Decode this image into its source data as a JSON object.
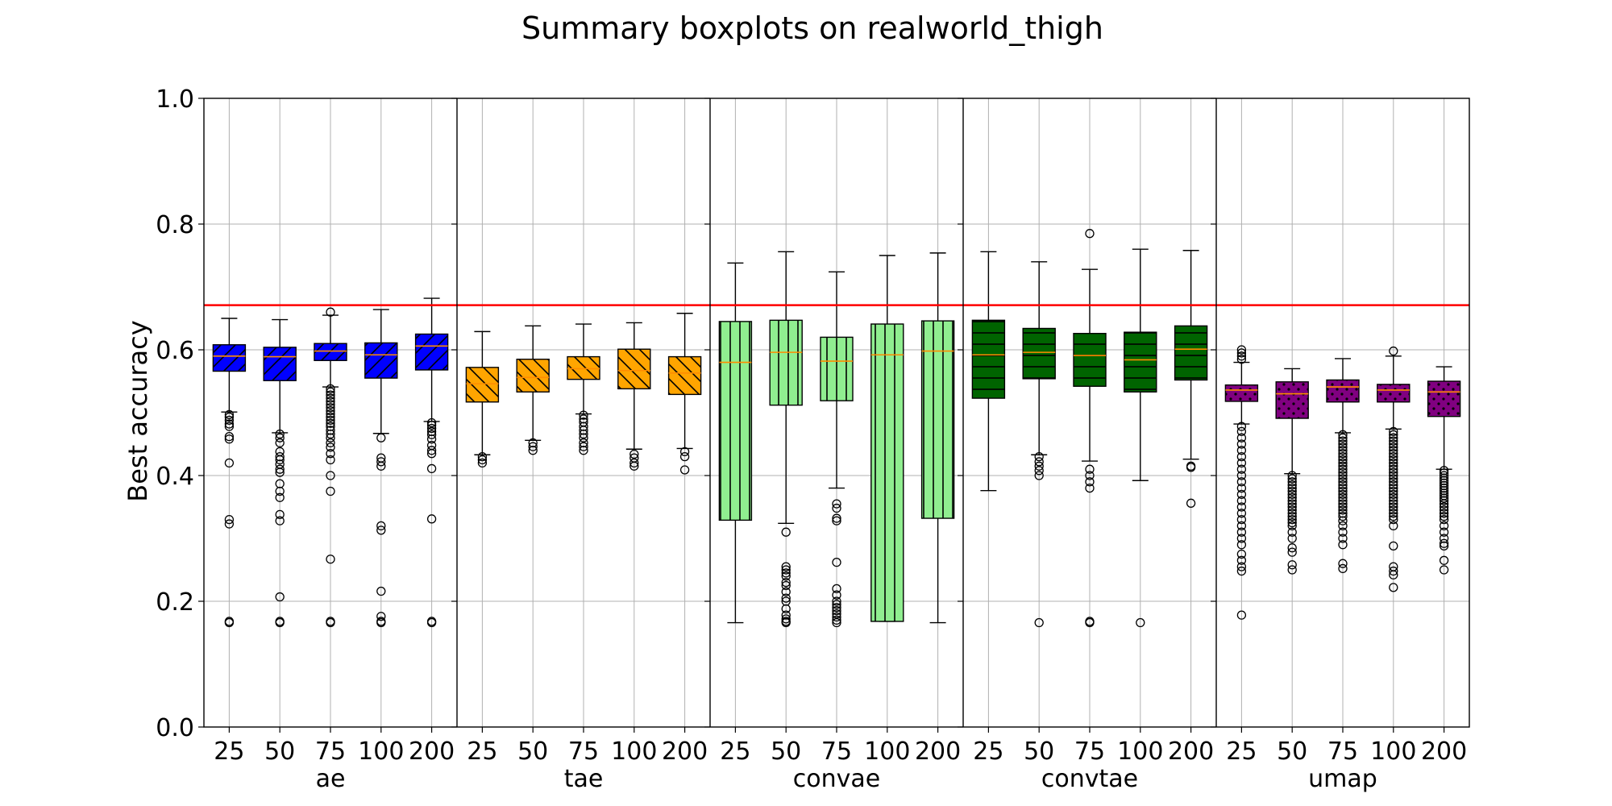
{
  "chart_data": {
    "type": "boxplot",
    "title": "Summary boxplots on realworld_thigh",
    "ylabel": "Best accuracy",
    "ylim": [
      0.0,
      1.0
    ],
    "yticks": [
      "0.0",
      "0.2",
      "0.4",
      "0.6",
      "0.8",
      "1.0"
    ],
    "grid": true,
    "reference_line": {
      "y": 0.671,
      "color": "#ff0000"
    },
    "groups": [
      {
        "name": "ae",
        "color": "#0000ff",
        "hatch": "diagonal-forward",
        "boxes": [
          {
            "label": "25",
            "whislo": 0.501,
            "q1": 0.566,
            "median": 0.59,
            "q3": 0.608,
            "whishi": 0.65,
            "fliers": [
              0.497,
              0.493,
              0.488,
              0.482,
              0.478,
              0.462,
              0.458,
              0.42,
              0.33,
              0.323,
              0.168,
              0.166
            ]
          },
          {
            "label": "50",
            "whislo": 0.468,
            "q1": 0.551,
            "median": 0.589,
            "q3": 0.604,
            "whishi": 0.648,
            "fliers": [
              0.466,
              0.46,
              0.452,
              0.438,
              0.43,
              0.425,
              0.418,
              0.41,
              0.405,
              0.387,
              0.375,
              0.365,
              0.338,
              0.328,
              0.207,
              0.168,
              0.166
            ]
          },
          {
            "label": "75",
            "whislo": 0.541,
            "q1": 0.583,
            "median": 0.598,
            "q3": 0.61,
            "whishi": 0.655,
            "fliers": [
              0.66,
              0.538,
              0.533,
              0.528,
              0.523,
              0.518,
              0.513,
              0.508,
              0.503,
              0.498,
              0.493,
              0.488,
              0.483,
              0.478,
              0.472,
              0.466,
              0.46,
              0.452,
              0.445,
              0.435,
              0.425,
              0.4,
              0.375,
              0.267,
              0.168,
              0.166
            ]
          },
          {
            "label": "100",
            "whislo": 0.467,
            "q1": 0.555,
            "median": 0.592,
            "q3": 0.611,
            "whishi": 0.664,
            "fliers": [
              0.46,
              0.428,
              0.422,
              0.415,
              0.32,
              0.313,
              0.216,
              0.176,
              0.168,
              0.166
            ]
          },
          {
            "label": "200",
            "whislo": 0.486,
            "q1": 0.568,
            "median": 0.606,
            "q3": 0.625,
            "whishi": 0.682,
            "fliers": [
              0.484,
              0.48,
              0.475,
              0.47,
              0.465,
              0.458,
              0.448,
              0.44,
              0.435,
              0.411,
              0.331,
              0.168,
              0.166
            ]
          }
        ]
      },
      {
        "name": "tae",
        "color": "#ffa500",
        "hatch": "diagonal-back",
        "boxes": [
          {
            "label": "25",
            "whislo": 0.433,
            "q1": 0.517,
            "median": 0.546,
            "q3": 0.572,
            "whishi": 0.629,
            "fliers": [
              0.43,
              0.425,
              0.42
            ]
          },
          {
            "label": "50",
            "whislo": 0.456,
            "q1": 0.533,
            "median": 0.556,
            "q3": 0.585,
            "whishi": 0.638,
            "fliers": [
              0.452,
              0.446,
              0.44
            ]
          },
          {
            "label": "75",
            "whislo": 0.498,
            "q1": 0.553,
            "median": 0.57,
            "q3": 0.589,
            "whishi": 0.641,
            "fliers": [
              0.496,
              0.49,
              0.485,
              0.478,
              0.472,
              0.466,
              0.46,
              0.452,
              0.446,
              0.44
            ]
          },
          {
            "label": "100",
            "whislo": 0.442,
            "q1": 0.538,
            "median": 0.567,
            "q3": 0.601,
            "whishi": 0.643,
            "fliers": [
              0.434,
              0.428,
              0.42,
              0.415
            ]
          },
          {
            "label": "200",
            "whislo": 0.443,
            "q1": 0.529,
            "median": 0.563,
            "q3": 0.589,
            "whishi": 0.658,
            "fliers": [
              0.438,
              0.43,
              0.409
            ]
          }
        ]
      },
      {
        "name": "convae",
        "color": "#90ee90",
        "hatch": "vertical",
        "boxes": [
          {
            "label": "25",
            "whislo": 0.166,
            "q1": 0.329,
            "median": 0.58,
            "q3": 0.645,
            "whishi": 0.738,
            "fliers": []
          },
          {
            "label": "50",
            "whislo": 0.324,
            "q1": 0.512,
            "median": 0.596,
            "q3": 0.647,
            "whishi": 0.756,
            "fliers": [
              0.31,
              0.255,
              0.25,
              0.245,
              0.24,
              0.23,
              0.225,
              0.215,
              0.205,
              0.2,
              0.188,
              0.178,
              0.172,
              0.168,
              0.166
            ]
          },
          {
            "label": "75",
            "whislo": 0.38,
            "q1": 0.519,
            "median": 0.582,
            "q3": 0.62,
            "whishi": 0.724,
            "fliers": [
              0.355,
              0.348,
              0.332,
              0.328,
              0.262,
              0.22,
              0.21,
              0.2,
              0.195,
              0.19,
              0.185,
              0.18,
              0.175,
              0.17,
              0.166
            ]
          },
          {
            "label": "100",
            "whislo": 0.168,
            "q1": 0.168,
            "median": 0.592,
            "q3": 0.641,
            "whishi": 0.75,
            "fliers": []
          },
          {
            "label": "200",
            "whislo": 0.166,
            "q1": 0.332,
            "median": 0.598,
            "q3": 0.646,
            "whishi": 0.754,
            "fliers": []
          }
        ]
      },
      {
        "name": "convtae",
        "color": "#006400",
        "hatch": "horizontal",
        "boxes": [
          {
            "label": "25",
            "whislo": 0.376,
            "q1": 0.523,
            "median": 0.592,
            "q3": 0.647,
            "whishi": 0.756,
            "fliers": []
          },
          {
            "label": "50",
            "whislo": 0.433,
            "q1": 0.554,
            "median": 0.596,
            "q3": 0.634,
            "whishi": 0.74,
            "fliers": [
              0.43,
              0.422,
              0.415,
              0.408,
              0.4,
              0.166
            ]
          },
          {
            "label": "75",
            "whislo": 0.423,
            "q1": 0.542,
            "median": 0.591,
            "q3": 0.626,
            "whishi": 0.728,
            "fliers": [
              0.785,
              0.41,
              0.4,
              0.39,
              0.38,
              0.168,
              0.166
            ]
          },
          {
            "label": "100",
            "whislo": 0.392,
            "q1": 0.533,
            "median": 0.584,
            "q3": 0.628,
            "whishi": 0.76,
            "fliers": [
              0.166
            ]
          },
          {
            "label": "200",
            "whislo": 0.426,
            "q1": 0.552,
            "median": 0.601,
            "q3": 0.638,
            "whishi": 0.758,
            "fliers": [
              0.415,
              0.413,
              0.356
            ]
          }
        ]
      },
      {
        "name": "umap",
        "color": "#800080",
        "hatch": "dots",
        "boxes": [
          {
            "label": "25",
            "whislo": 0.482,
            "q1": 0.518,
            "median": 0.536,
            "q3": 0.544,
            "whishi": 0.58,
            "fliers": [
              0.6,
              0.595,
              0.59,
              0.585,
              0.478,
              0.47,
              0.46,
              0.45,
              0.44,
              0.43,
              0.42,
              0.41,
              0.4,
              0.39,
              0.38,
              0.37,
              0.36,
              0.35,
              0.34,
              0.33,
              0.32,
              0.31,
              0.3,
              0.29,
              0.275,
              0.265,
              0.255,
              0.248,
              0.178
            ]
          },
          {
            "label": "50",
            "whislo": 0.403,
            "q1": 0.491,
            "median": 0.53,
            "q3": 0.549,
            "whishi": 0.57,
            "fliers": [
              0.4,
              0.395,
              0.39,
              0.385,
              0.38,
              0.375,
              0.37,
              0.365,
              0.36,
              0.355,
              0.35,
              0.345,
              0.34,
              0.335,
              0.33,
              0.325,
              0.32,
              0.31,
              0.3,
              0.285,
              0.278,
              0.258,
              0.25
            ]
          },
          {
            "label": "75",
            "whislo": 0.468,
            "q1": 0.517,
            "median": 0.541,
            "q3": 0.552,
            "whishi": 0.586,
            "fliers": [
              0.465,
              0.46,
              0.455,
              0.45,
              0.445,
              0.44,
              0.435,
              0.43,
              0.425,
              0.42,
              0.415,
              0.41,
              0.405,
              0.4,
              0.395,
              0.39,
              0.385,
              0.38,
              0.375,
              0.37,
              0.365,
              0.36,
              0.355,
              0.35,
              0.345,
              0.34,
              0.335,
              0.328,
              0.32,
              0.31,
              0.3,
              0.29,
              0.26,
              0.252
            ]
          },
          {
            "label": "100",
            "whislo": 0.474,
            "q1": 0.517,
            "median": 0.536,
            "q3": 0.545,
            "whishi": 0.59,
            "fliers": [
              0.598,
              0.47,
              0.465,
              0.46,
              0.455,
              0.45,
              0.445,
              0.44,
              0.435,
              0.43,
              0.425,
              0.42,
              0.415,
              0.41,
              0.405,
              0.4,
              0.395,
              0.39,
              0.385,
              0.38,
              0.375,
              0.37,
              0.365,
              0.36,
              0.355,
              0.35,
              0.345,
              0.34,
              0.335,
              0.33,
              0.32,
              0.288,
              0.255,
              0.248,
              0.242,
              0.222
            ]
          },
          {
            "label": "200",
            "whislo": 0.41,
            "q1": 0.494,
            "median": 0.533,
            "q3": 0.55,
            "whishi": 0.573,
            "fliers": [
              0.408,
              0.404,
              0.4,
              0.396,
              0.392,
              0.388,
              0.384,
              0.38,
              0.376,
              0.372,
              0.368,
              0.364,
              0.36,
              0.355,
              0.35,
              0.345,
              0.34,
              0.335,
              0.33,
              0.32,
              0.31,
              0.3,
              0.292,
              0.288,
              0.265,
              0.25
            ]
          }
        ]
      }
    ]
  }
}
